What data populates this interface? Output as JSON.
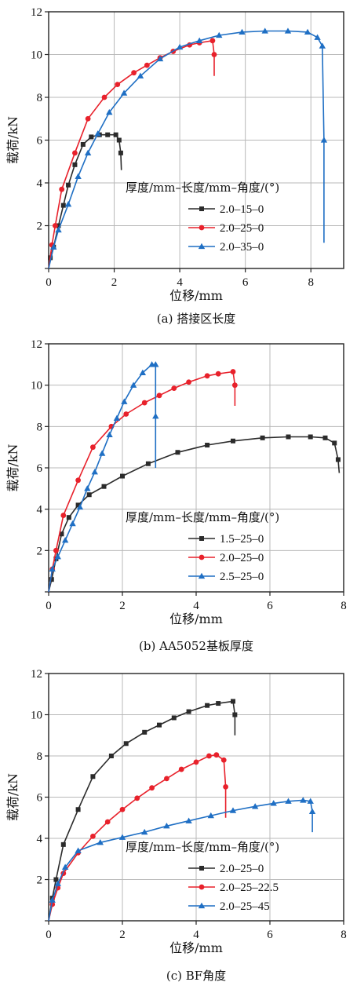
{
  "colors": {
    "black": "#2b2b2b",
    "red": "#e8212b",
    "blue": "#1f6fc4",
    "grid": "#b8b8b8"
  },
  "chart_data": [
    {
      "type": "line",
      "caption": "(a) 搭接区长度",
      "xlabel": "位移/mm",
      "ylabel": "载荷/kN",
      "xlim": [
        0,
        9
      ],
      "ylim": [
        0,
        12
      ],
      "xticks": [
        0,
        2,
        4,
        6,
        8
      ],
      "yticks": [
        2,
        4,
        6,
        8,
        10,
        12
      ],
      "grid": true,
      "legend_title": "厚度/mm–长度/mm–角度/(°)",
      "series": [
        {
          "name": "2.0–15–0",
          "color": "black",
          "marker": "square",
          "x": [
            0,
            0.05,
            0.15,
            0.3,
            0.45,
            0.6,
            0.8,
            1.05,
            1.3,
            1.55,
            1.8,
            2.05,
            2.15,
            2.2,
            2.22
          ],
          "y": [
            0,
            0.5,
            1.0,
            2.0,
            2.95,
            3.9,
            4.85,
            5.8,
            6.15,
            6.25,
            6.25,
            6.25,
            6.0,
            5.4,
            4.6
          ]
        },
        {
          "name": "2.0–25–0",
          "color": "red",
          "marker": "circle",
          "x": [
            0,
            0.1,
            0.2,
            0.4,
            0.8,
            1.2,
            1.7,
            2.1,
            2.6,
            3.0,
            3.4,
            3.8,
            4.3,
            4.6,
            5.0,
            5.05,
            5.05
          ],
          "y": [
            0,
            1.1,
            2.0,
            3.7,
            5.4,
            7.0,
            8.0,
            8.6,
            9.15,
            9.5,
            9.85,
            10.15,
            10.45,
            10.55,
            10.65,
            10.0,
            9.0
          ]
        },
        {
          "name": "2.0–35–0",
          "color": "blue",
          "marker": "triangle",
          "x": [
            0,
            0.15,
            0.3,
            0.6,
            0.9,
            1.2,
            1.5,
            1.85,
            2.3,
            2.8,
            3.4,
            4.0,
            4.6,
            5.2,
            5.9,
            6.6,
            7.3,
            7.9,
            8.2,
            8.35,
            8.4,
            8.4
          ],
          "y": [
            0,
            1.0,
            1.8,
            3.0,
            4.3,
            5.4,
            6.3,
            7.3,
            8.2,
            9.0,
            9.8,
            10.35,
            10.65,
            10.9,
            11.05,
            11.1,
            11.1,
            11.05,
            10.8,
            10.4,
            6.0,
            1.2
          ]
        }
      ]
    },
    {
      "type": "line",
      "caption": "(b) AA5052基板厚度",
      "xlabel": "位移/mm",
      "ylabel": "载荷/kN",
      "xlim": [
        0,
        8
      ],
      "ylim": [
        0,
        12
      ],
      "xticks": [
        0,
        2,
        4,
        6,
        8
      ],
      "yticks": [
        2,
        4,
        6,
        8,
        10,
        12
      ],
      "grid": true,
      "legend_title": "厚度/mm–长度/mm–角度/(°)",
      "series": [
        {
          "name": "1.5–25–0",
          "color": "black",
          "marker": "square",
          "x": [
            0,
            0.08,
            0.2,
            0.35,
            0.55,
            0.8,
            1.1,
            1.5,
            2.0,
            2.7,
            3.5,
            4.3,
            5.0,
            5.8,
            6.5,
            7.1,
            7.5,
            7.75,
            7.85,
            7.88
          ],
          "y": [
            0,
            0.6,
            1.6,
            2.8,
            3.6,
            4.2,
            4.7,
            5.1,
            5.6,
            6.2,
            6.75,
            7.1,
            7.3,
            7.45,
            7.5,
            7.5,
            7.45,
            7.2,
            6.4,
            5.75
          ]
        },
        {
          "name": "2.0–25–0",
          "color": "red",
          "marker": "circle",
          "x": [
            0,
            0.1,
            0.2,
            0.4,
            0.8,
            1.2,
            1.7,
            2.1,
            2.6,
            3.0,
            3.4,
            3.8,
            4.3,
            4.6,
            5.0,
            5.05,
            5.05
          ],
          "y": [
            0,
            1.1,
            2.0,
            3.7,
            5.4,
            7.0,
            8.0,
            8.6,
            9.15,
            9.5,
            9.85,
            10.15,
            10.45,
            10.55,
            10.65,
            10.0,
            9.0
          ]
        },
        {
          "name": "2.5–25–0",
          "color": "blue",
          "marker": "triangle",
          "x": [
            0,
            0.1,
            0.25,
            0.45,
            0.65,
            0.85,
            1.05,
            1.25,
            1.45,
            1.65,
            1.85,
            2.05,
            2.3,
            2.55,
            2.8,
            2.9,
            2.9,
            2.9
          ],
          "y": [
            0,
            1.1,
            1.7,
            2.5,
            3.3,
            4.1,
            5.0,
            5.8,
            6.7,
            7.6,
            8.4,
            9.2,
            10.0,
            10.6,
            11.0,
            11.0,
            8.5,
            6.0
          ]
        }
      ]
    },
    {
      "type": "line",
      "caption": "(c) BF角度",
      "xlabel": "位移/mm",
      "ylabel": "载荷/kN",
      "xlim": [
        0,
        8
      ],
      "ylim": [
        0,
        12
      ],
      "xticks": [
        0,
        2,
        4,
        6,
        8
      ],
      "yticks": [
        2,
        4,
        6,
        8,
        10,
        12
      ],
      "grid": true,
      "legend_title": "厚度/mm–长度/mm–角度/(°)",
      "series": [
        {
          "name": "2.0–25–0",
          "color": "black",
          "marker": "square",
          "x": [
            0,
            0.1,
            0.2,
            0.4,
            0.8,
            1.2,
            1.7,
            2.1,
            2.6,
            3.0,
            3.4,
            3.8,
            4.3,
            4.6,
            5.0,
            5.05,
            5.05
          ],
          "y": [
            0,
            1.1,
            2.0,
            3.7,
            5.4,
            7.0,
            8.0,
            8.6,
            9.15,
            9.5,
            9.85,
            10.15,
            10.45,
            10.55,
            10.65,
            10.0,
            9.0
          ]
        },
        {
          "name": "2.0–25–22.5",
          "color": "red",
          "marker": "circle",
          "x": [
            0,
            0.1,
            0.25,
            0.4,
            0.8,
            1.2,
            1.6,
            2.0,
            2.4,
            2.8,
            3.2,
            3.6,
            4.0,
            4.35,
            4.55,
            4.75,
            4.8,
            4.8
          ],
          "y": [
            0,
            0.8,
            1.6,
            2.3,
            3.3,
            4.1,
            4.8,
            5.4,
            5.95,
            6.45,
            6.9,
            7.35,
            7.7,
            8.0,
            8.05,
            7.8,
            6.5,
            5.0
          ]
        },
        {
          "name": "2.0–25–45",
          "color": "blue",
          "marker": "triangle",
          "x": [
            0,
            0.1,
            0.25,
            0.45,
            0.8,
            1.4,
            2.0,
            2.6,
            3.2,
            3.8,
            4.4,
            5.0,
            5.6,
            6.1,
            6.5,
            6.9,
            7.1,
            7.15,
            7.15
          ],
          "y": [
            0,
            1.0,
            1.8,
            2.6,
            3.4,
            3.8,
            4.05,
            4.3,
            4.6,
            4.85,
            5.1,
            5.35,
            5.55,
            5.7,
            5.8,
            5.85,
            5.8,
            5.3,
            4.3
          ]
        }
      ]
    }
  ]
}
